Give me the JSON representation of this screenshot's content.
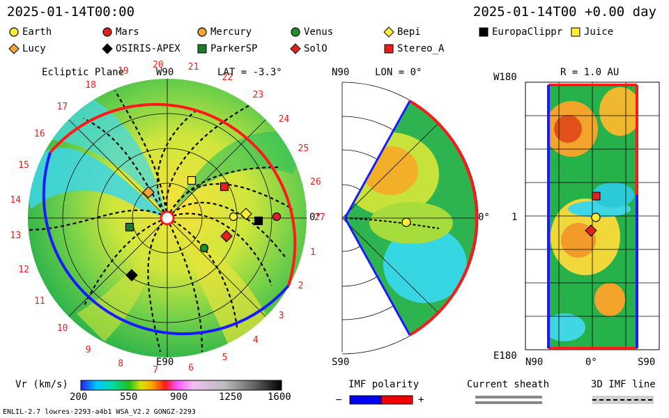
{
  "header": {
    "left_time": "2025-01-14T00:00",
    "right_time": "2025-01-14T00 +0.00 day"
  },
  "legend": [
    {
      "label": "Earth",
      "shape": "circle",
      "color": "#ffee33",
      "row": 0,
      "col": 0
    },
    {
      "label": "Mars",
      "shape": "circle",
      "color": "#e3201b",
      "row": 0,
      "col": 1
    },
    {
      "label": "Mercury",
      "shape": "circle",
      "color": "#f2a534",
      "row": 0,
      "col": 2
    },
    {
      "label": "Venus",
      "shape": "circle",
      "color": "#1f8f2b",
      "row": 0,
      "col": 3
    },
    {
      "label": "Bepi",
      "shape": "diamond",
      "color": "#ffee33",
      "row": 0,
      "col": 4
    },
    {
      "label": "EuropaClippr",
      "shape": "square",
      "color": "#000000",
      "row": 0,
      "col": 5
    },
    {
      "label": "Juice",
      "shape": "square",
      "color": "#ffee33",
      "row": 0,
      "col": 6
    },
    {
      "label": "Lucy",
      "shape": "diamond",
      "color": "#f2a534",
      "row": 1,
      "col": 0
    },
    {
      "label": "OSIRIS-APEX",
      "shape": "diamond",
      "color": "#000000",
      "row": 1,
      "col": 1
    },
    {
      "label": "ParkerSP",
      "shape": "square",
      "color": "#1f7a2a",
      "row": 1,
      "col": 2
    },
    {
      "label": "SolO",
      "shape": "diamond",
      "color": "#e3201b",
      "row": 1,
      "col": 3
    },
    {
      "label": "Stereo_A",
      "shape": "square",
      "color": "#e3201b",
      "row": 1,
      "col": 4
    }
  ],
  "panels": {
    "ecliptic": {
      "title": "Ecliptic Plane",
      "lat_label": "LAT = -3.3°",
      "top_label": "W90",
      "bottom_label": "E90",
      "right_label": "0°"
    },
    "meridional": {
      "lon_label": "LON = 0°",
      "top_label": "N90",
      "bottom_label": "S90",
      "right_label": "0°"
    },
    "map": {
      "r_label": "R = 1.0 AU",
      "top_left": "W180",
      "bottom_left": "E180",
      "left_mid": "1",
      "x_left": "N90",
      "x_mid": "0°",
      "x_right": "S90"
    }
  },
  "rotation_numbers": [
    "1",
    "2",
    "3",
    "4",
    "5",
    "6",
    "7",
    "8",
    "9",
    "10",
    "11",
    "12",
    "13",
    "14",
    "15",
    "16",
    "17",
    "18",
    "19",
    "20",
    "21",
    "22",
    "23",
    "24",
    "25",
    "26",
    "27"
  ],
  "colorbar": {
    "label": "Vr (km/s)",
    "ticks": [
      "200",
      "550",
      "900",
      "1250",
      "1600"
    ]
  },
  "imf_polarity": {
    "label": "IMF polarity",
    "minus": "−",
    "plus": "+",
    "neg_color": "#0000ee",
    "pos_color": "#ee0000"
  },
  "current_sheath": {
    "label": "Current sheath"
  },
  "imf_line": {
    "label": "3D IMF line"
  },
  "footer": {
    "left": "ENLIL-2.7 lowres-2293-a4b1 WSA_V2.2 GONGZ-2293"
  }
}
